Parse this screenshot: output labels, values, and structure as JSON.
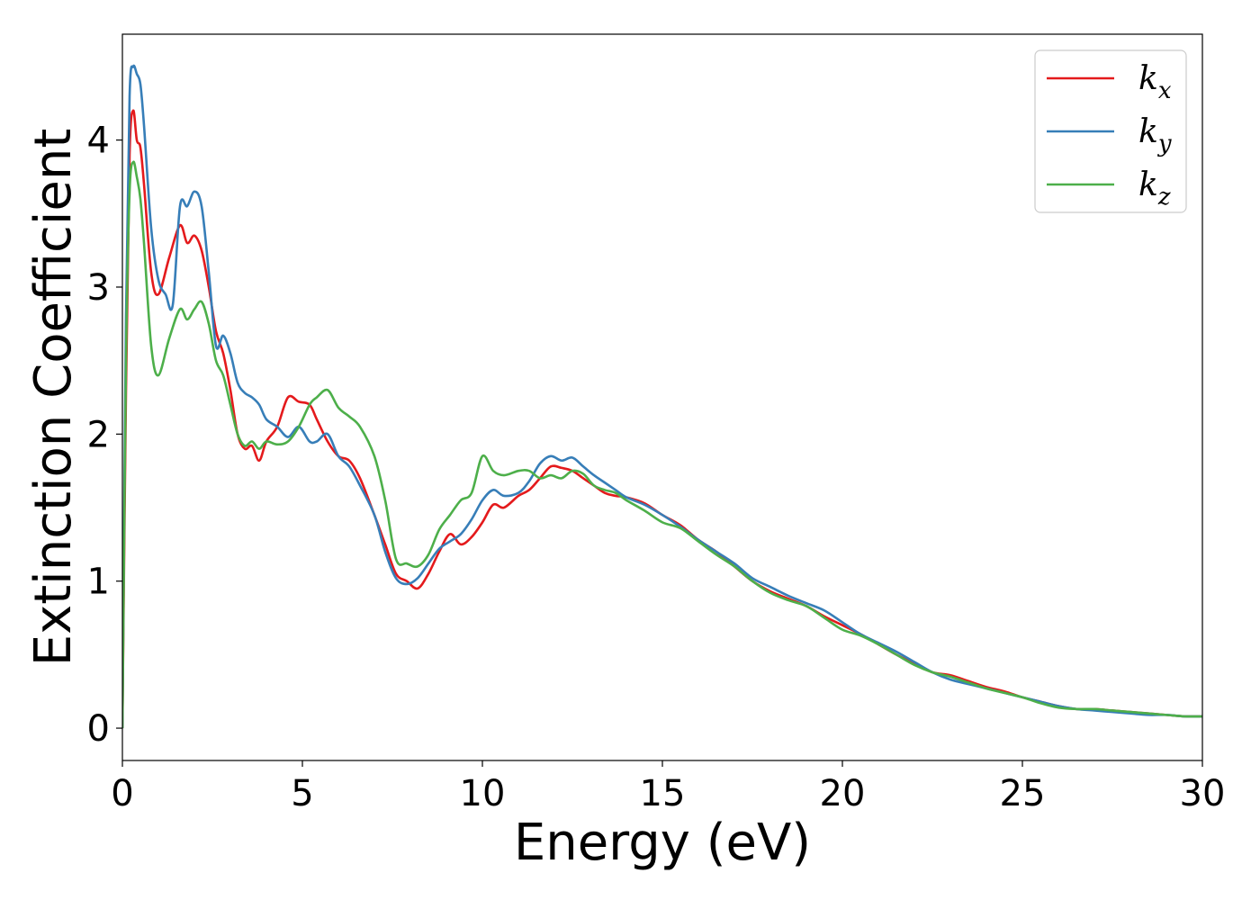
{
  "chart_data": {
    "type": "line",
    "title": "",
    "xlabel": "Energy (eV)",
    "ylabel": "Extinction Coefficient",
    "xlim": [
      0,
      30
    ],
    "ylim": [
      -0.22,
      4.72
    ],
    "xticks": [
      0,
      5,
      10,
      15,
      20,
      25,
      30
    ],
    "yticks": [
      0,
      1,
      2,
      3,
      4
    ],
    "grid": false,
    "legend_position": "top-right",
    "series": [
      {
        "name": "k_x",
        "label_base": "k",
        "label_sub": "x",
        "color": "#e41a1c",
        "x": [
          0,
          0.1,
          0.2,
          0.3,
          0.4,
          0.5,
          0.6,
          0.8,
          1.0,
          1.3,
          1.6,
          1.8,
          2.0,
          2.2,
          2.4,
          2.6,
          2.8,
          3.0,
          3.2,
          3.4,
          3.6,
          3.8,
          4.0,
          4.3,
          4.6,
          4.9,
          5.2,
          5.4,
          5.7,
          6.0,
          6.3,
          6.6,
          7.0,
          7.3,
          7.6,
          7.9,
          8.2,
          8.5,
          8.8,
          9.1,
          9.4,
          9.7,
          10.0,
          10.3,
          10.6,
          11.0,
          11.3,
          11.6,
          11.9,
          12.2,
          12.5,
          12.8,
          13.1,
          13.4,
          13.7,
          14.0,
          14.5,
          15.0,
          15.5,
          16.0,
          16.5,
          17.0,
          17.5,
          18.0,
          18.5,
          19.0,
          19.5,
          20.0,
          20.5,
          21.0,
          21.5,
          22.0,
          22.5,
          23.0,
          23.5,
          24.0,
          24.5,
          25.0,
          25.5,
          26.0,
          26.5,
          27.0,
          27.5,
          28.0,
          28.5,
          29.0,
          29.5,
          30.0
        ],
        "y": [
          0.0,
          2.3,
          3.9,
          4.2,
          4.0,
          3.95,
          3.7,
          3.1,
          2.95,
          3.2,
          3.42,
          3.3,
          3.35,
          3.25,
          3.0,
          2.7,
          2.55,
          2.3,
          2.0,
          1.9,
          1.92,
          1.82,
          1.95,
          2.05,
          2.25,
          2.22,
          2.2,
          2.1,
          1.95,
          1.85,
          1.82,
          1.7,
          1.45,
          1.25,
          1.05,
          1.0,
          0.95,
          1.05,
          1.2,
          1.32,
          1.25,
          1.3,
          1.4,
          1.52,
          1.5,
          1.58,
          1.62,
          1.7,
          1.78,
          1.77,
          1.75,
          1.7,
          1.65,
          1.6,
          1.58,
          1.57,
          1.53,
          1.45,
          1.38,
          1.28,
          1.2,
          1.1,
          1.0,
          0.93,
          0.88,
          0.83,
          0.76,
          0.7,
          0.64,
          0.57,
          0.5,
          0.44,
          0.38,
          0.36,
          0.32,
          0.28,
          0.25,
          0.21,
          0.18,
          0.15,
          0.13,
          0.13,
          0.12,
          0.11,
          0.1,
          0.09,
          0.08,
          0.08
        ]
      },
      {
        "name": "k_y",
        "label_base": "k",
        "label_sub": "y",
        "color": "#377eb8",
        "x": [
          0,
          0.1,
          0.2,
          0.3,
          0.4,
          0.5,
          0.6,
          0.8,
          1.0,
          1.2,
          1.4,
          1.6,
          1.8,
          2.0,
          2.2,
          2.4,
          2.6,
          2.8,
          3.0,
          3.2,
          3.4,
          3.6,
          3.8,
          4.0,
          4.3,
          4.6,
          4.9,
          5.2,
          5.4,
          5.7,
          6.0,
          6.3,
          6.6,
          7.0,
          7.3,
          7.6,
          7.9,
          8.2,
          8.5,
          8.8,
          9.1,
          9.4,
          9.7,
          10.0,
          10.3,
          10.6,
          11.0,
          11.3,
          11.6,
          11.9,
          12.2,
          12.5,
          12.8,
          13.1,
          13.4,
          13.7,
          14.0,
          14.5,
          15.0,
          15.5,
          16.0,
          16.5,
          17.0,
          17.5,
          18.0,
          18.5,
          19.0,
          19.5,
          20.0,
          20.5,
          21.0,
          21.5,
          22.0,
          22.5,
          23.0,
          23.5,
          24.0,
          24.5,
          25.0,
          25.5,
          26.0,
          26.5,
          27.0,
          27.5,
          28.0,
          28.5,
          29.0,
          29.5,
          30.0
        ],
        "y": [
          0.0,
          2.8,
          4.3,
          4.5,
          4.45,
          4.38,
          4.1,
          3.4,
          3.05,
          2.95,
          2.88,
          3.55,
          3.55,
          3.65,
          3.55,
          3.1,
          2.6,
          2.67,
          2.55,
          2.35,
          2.28,
          2.25,
          2.2,
          2.1,
          2.05,
          1.98,
          2.05,
          1.95,
          1.95,
          2.0,
          1.85,
          1.78,
          1.65,
          1.45,
          1.2,
          1.02,
          0.98,
          1.02,
          1.12,
          1.22,
          1.27,
          1.32,
          1.42,
          1.55,
          1.62,
          1.58,
          1.6,
          1.68,
          1.8,
          1.85,
          1.82,
          1.84,
          1.78,
          1.72,
          1.67,
          1.62,
          1.57,
          1.52,
          1.45,
          1.37,
          1.28,
          1.2,
          1.12,
          1.02,
          0.96,
          0.9,
          0.85,
          0.8,
          0.72,
          0.64,
          0.58,
          0.52,
          0.45,
          0.38,
          0.33,
          0.3,
          0.27,
          0.24,
          0.21,
          0.18,
          0.15,
          0.13,
          0.12,
          0.11,
          0.1,
          0.09,
          0.09,
          0.08,
          0.08
        ]
      },
      {
        "name": "k_z",
        "label_base": "k",
        "label_sub": "z",
        "color": "#4daf4a",
        "x": [
          0,
          0.1,
          0.2,
          0.3,
          0.4,
          0.5,
          0.6,
          0.8,
          1.0,
          1.3,
          1.6,
          1.8,
          2.0,
          2.2,
          2.4,
          2.6,
          2.8,
          3.0,
          3.2,
          3.4,
          3.6,
          3.8,
          4.0,
          4.3,
          4.6,
          4.9,
          5.2,
          5.4,
          5.7,
          6.0,
          6.3,
          6.6,
          7.0,
          7.3,
          7.6,
          7.9,
          8.2,
          8.5,
          8.8,
          9.1,
          9.4,
          9.7,
          10.0,
          10.3,
          10.6,
          11.0,
          11.3,
          11.6,
          11.9,
          12.2,
          12.5,
          12.8,
          13.1,
          13.4,
          13.7,
          14.0,
          14.5,
          15.0,
          15.5,
          16.0,
          16.5,
          17.0,
          17.5,
          18.0,
          18.5,
          19.0,
          19.5,
          20.0,
          20.5,
          21.0,
          21.5,
          22.0,
          22.5,
          23.0,
          23.5,
          24.0,
          24.5,
          25.0,
          25.5,
          26.0,
          26.5,
          27.0,
          27.5,
          28.0,
          28.5,
          29.0,
          29.5,
          30.0
        ],
        "y": [
          0.0,
          2.5,
          3.65,
          3.85,
          3.75,
          3.6,
          3.3,
          2.6,
          2.4,
          2.65,
          2.85,
          2.78,
          2.85,
          2.9,
          2.75,
          2.5,
          2.4,
          2.2,
          2.0,
          1.92,
          1.95,
          1.9,
          1.95,
          1.93,
          1.95,
          2.05,
          2.2,
          2.25,
          2.3,
          2.18,
          2.12,
          2.05,
          1.85,
          1.55,
          1.15,
          1.12,
          1.1,
          1.18,
          1.35,
          1.45,
          1.55,
          1.6,
          1.85,
          1.75,
          1.72,
          1.75,
          1.75,
          1.7,
          1.72,
          1.7,
          1.75,
          1.73,
          1.65,
          1.62,
          1.6,
          1.55,
          1.48,
          1.4,
          1.36,
          1.27,
          1.18,
          1.1,
          1.0,
          0.92,
          0.87,
          0.83,
          0.75,
          0.67,
          0.63,
          0.57,
          0.5,
          0.43,
          0.38,
          0.35,
          0.31,
          0.27,
          0.24,
          0.21,
          0.17,
          0.14,
          0.13,
          0.13,
          0.12,
          0.11,
          0.1,
          0.09,
          0.08,
          0.08
        ]
      }
    ]
  }
}
